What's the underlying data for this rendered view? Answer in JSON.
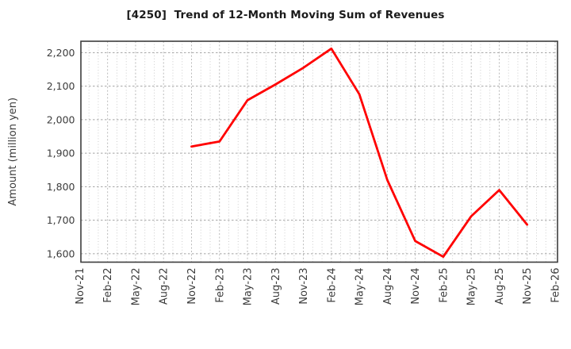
{
  "chart_data": {
    "type": "line",
    "title": "[4250]  Trend of 12-Month Moving Sum of Revenues",
    "xlabel": "",
    "ylabel": "Amount (million yen)",
    "grid": true,
    "legend": false,
    "series": [
      {
        "name": "12-Month Moving Sum of Revenues",
        "color": "#ff0000",
        "categories": [
          "Nov-22",
          "Feb-23",
          "May-23",
          "Aug-23",
          "Nov-23",
          "Feb-24",
          "May-24",
          "Aug-24",
          "Nov-24",
          "Feb-25",
          "May-25",
          "Aug-25",
          "Nov-25"
        ],
        "values": [
          1920,
          1935,
          2058,
          2105,
          2155,
          2212,
          2076,
          1820,
          1638,
          1591,
          1712,
          1790,
          1687
        ]
      }
    ],
    "x_axis": {
      "tick_labels": [
        "Nov-21",
        "Feb-22",
        "May-22",
        "Aug-22",
        "Nov-22",
        "Feb-23",
        "May-23",
        "Aug-23",
        "Nov-23",
        "Feb-24",
        "May-24",
        "Aug-24",
        "Nov-24",
        "Feb-25",
        "May-25",
        "Aug-25",
        "Nov-25",
        "Feb-26"
      ],
      "minor_divisions_per_interval": 3
    },
    "y_axis": {
      "tick_values": [
        1600,
        1700,
        1800,
        1900,
        2000,
        2100,
        2200
      ],
      "tick_labels": [
        "1,600",
        "1,700",
        "1,800",
        "1,900",
        "2,000",
        "2,100",
        "2,200"
      ],
      "ylim": [
        1575,
        2234
      ]
    },
    "colors": {
      "line": "#ff0000",
      "frame": "#3d3d3d",
      "grid_major": "#a3a3a3",
      "grid_minor_major_col": "#b3b3b3",
      "grid_minor": "#c7c7c7",
      "tick_text": "#3c3c3c",
      "title_text": "#1b1b1b",
      "background": "#ffffff"
    }
  }
}
